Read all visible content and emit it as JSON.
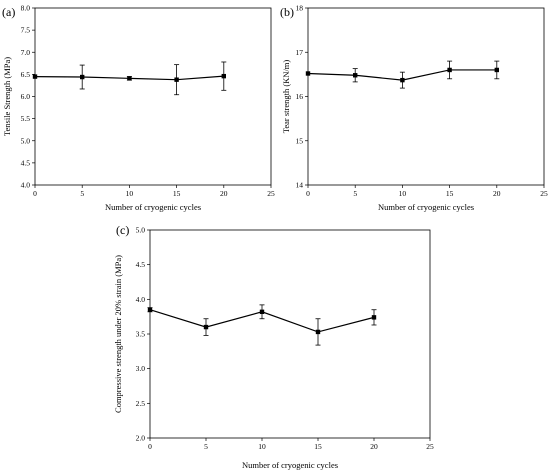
{
  "chart_data": [
    {
      "panel": "(a)",
      "type": "line",
      "xlabel": "Number of cryogenic cycles",
      "ylabel": "Tensile Strength  (MPa)",
      "xlim": [
        0,
        25
      ],
      "ylim": [
        4.0,
        8.0
      ],
      "xticks": [
        0,
        5,
        10,
        15,
        20,
        25
      ],
      "yticks": [
        4.0,
        4.5,
        5.0,
        5.5,
        6.0,
        6.5,
        7.0,
        7.5,
        8.0
      ],
      "ytick_labels": [
        "4.0",
        "4.5",
        "5.0",
        "5.5",
        "6.0",
        "6.5",
        "7.0",
        "7.5",
        "8.0"
      ],
      "grid": false,
      "series": [
        {
          "x": [
            0,
            5,
            10,
            15,
            20
          ],
          "y": [
            6.45,
            6.44,
            6.41,
            6.38,
            6.46
          ],
          "err": [
            0.0,
            0.27,
            0.04,
            0.34,
            0.32
          ]
        }
      ]
    },
    {
      "panel": "(b)",
      "type": "line",
      "xlabel": "Number of cryogenic cycles",
      "ylabel": "Tear strength (KN/m)",
      "xlim": [
        0,
        25
      ],
      "ylim": [
        14,
        18
      ],
      "xticks": [
        0,
        5,
        10,
        15,
        20,
        25
      ],
      "yticks": [
        14,
        15,
        16,
        17,
        18
      ],
      "ytick_labels": [
        "14",
        "15",
        "16",
        "17",
        "18"
      ],
      "grid": false,
      "series": [
        {
          "x": [
            0,
            5,
            10,
            15,
            20
          ],
          "y": [
            16.52,
            16.48,
            16.37,
            16.6,
            16.6
          ],
          "err": [
            0.0,
            0.15,
            0.18,
            0.2,
            0.2
          ]
        }
      ]
    },
    {
      "panel": "(c)",
      "type": "line",
      "xlabel": "Number of cryogenic cycles",
      "ylabel": "Compressive strength under 20% strain (MPa)",
      "xlim": [
        0,
        25
      ],
      "ylim": [
        2.0,
        5.0
      ],
      "xticks": [
        0,
        5,
        10,
        15,
        20,
        25
      ],
      "yticks": [
        2.0,
        2.5,
        3.0,
        3.5,
        4.0,
        4.5,
        5.0
      ],
      "ytick_labels": [
        "2.0",
        "2.5",
        "3.0",
        "3.5",
        "4.0",
        "4.5",
        "5.0"
      ],
      "grid": false,
      "series": [
        {
          "x": [
            0,
            5,
            10,
            15,
            20
          ],
          "y": [
            3.85,
            3.6,
            3.82,
            3.53,
            3.74
          ],
          "err": [
            0.03,
            0.12,
            0.1,
            0.19,
            0.11
          ]
        }
      ]
    }
  ]
}
